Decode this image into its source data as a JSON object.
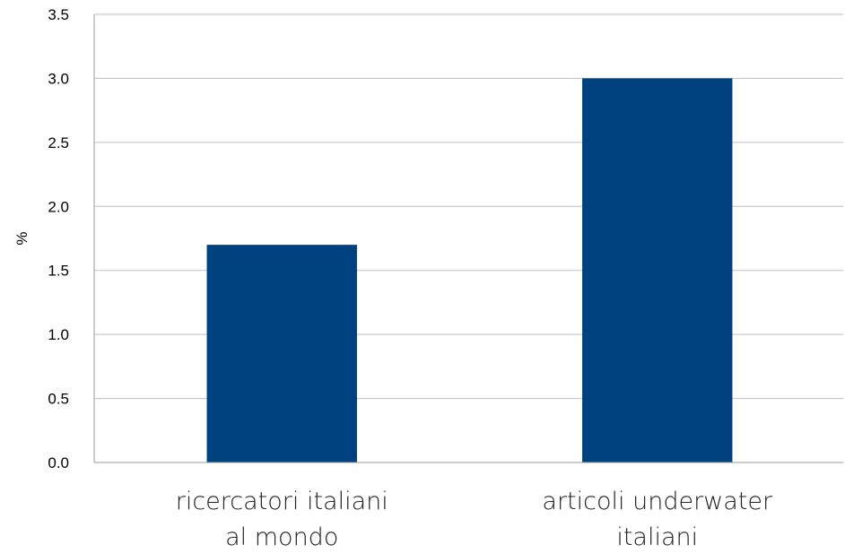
{
  "chart_data": {
    "type": "bar",
    "categories": [
      [
        "ricercatori italiani",
        "al mondo"
      ],
      [
        "articoli underwater",
        "italiani"
      ]
    ],
    "values": [
      1.7,
      3.0
    ],
    "xlabel": "",
    "ylabel": "%",
    "ylim": [
      0,
      3.5
    ],
    "yticks": [
      "0.0",
      "0.5",
      "1.0",
      "1.5",
      "2.0",
      "2.5",
      "3.0",
      "3.5"
    ],
    "grid": true,
    "legend": "none",
    "bar_color": "#00427F",
    "grid_color": "#BFBFBF"
  }
}
